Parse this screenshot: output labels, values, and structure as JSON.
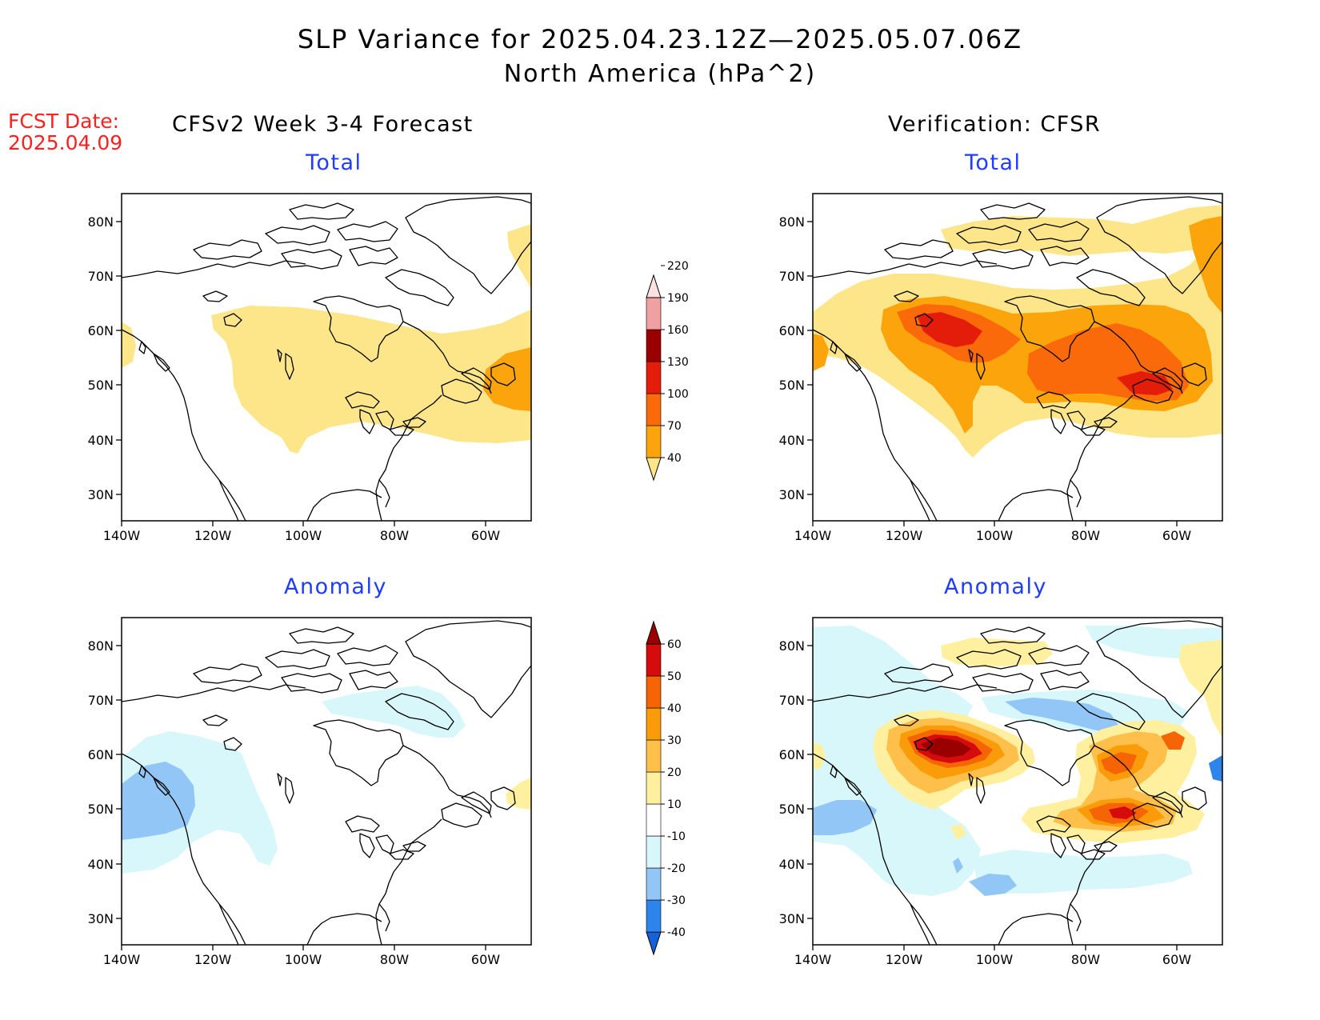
{
  "header": {
    "title": "SLP Variance for 2025.04.23.12Z—2025.05.07.06Z",
    "subtitle": "North America (hPa^2)",
    "fcst_label": "FCST Date:",
    "fcst_date": "2025.04.09"
  },
  "columns": {
    "left": "CFSv2 Week 3-4 Forecast",
    "right": "Verification: CFSR"
  },
  "panels": {
    "fcst_total": "Total",
    "fcst_anom": "Anomaly",
    "ver_total": "Total",
    "ver_anom": "Anomaly"
  },
  "axes": {
    "lat_labels": [
      "80N",
      "70N",
      "60N",
      "50N",
      "40N",
      "30N"
    ],
    "lon_labels": [
      "140W",
      "120W",
      "100W",
      "80W",
      "60W"
    ]
  },
  "colorbars": {
    "total": {
      "levels": [
        "40",
        "70",
        "100",
        "130",
        "160",
        "190",
        "220"
      ],
      "colors": [
        "#fde68a",
        "#fba40b",
        "#fa6a0a",
        "#e41c0a",
        "#9b0000",
        "#f0a0a0",
        "#fde0e0"
      ]
    },
    "anomaly": {
      "levels": [
        "-40",
        "-30",
        "-20",
        "-10",
        "10",
        "20",
        "30",
        "40",
        "50",
        "60"
      ],
      "colors": [
        "#1461d8",
        "#2d85ec",
        "#92c6f6",
        "#d8f7fb",
        "#ffffff",
        "#fff0a0",
        "#fec04a",
        "#fa9c09",
        "#f56405",
        "#d60b0b",
        "#9b0000"
      ]
    }
  }
}
